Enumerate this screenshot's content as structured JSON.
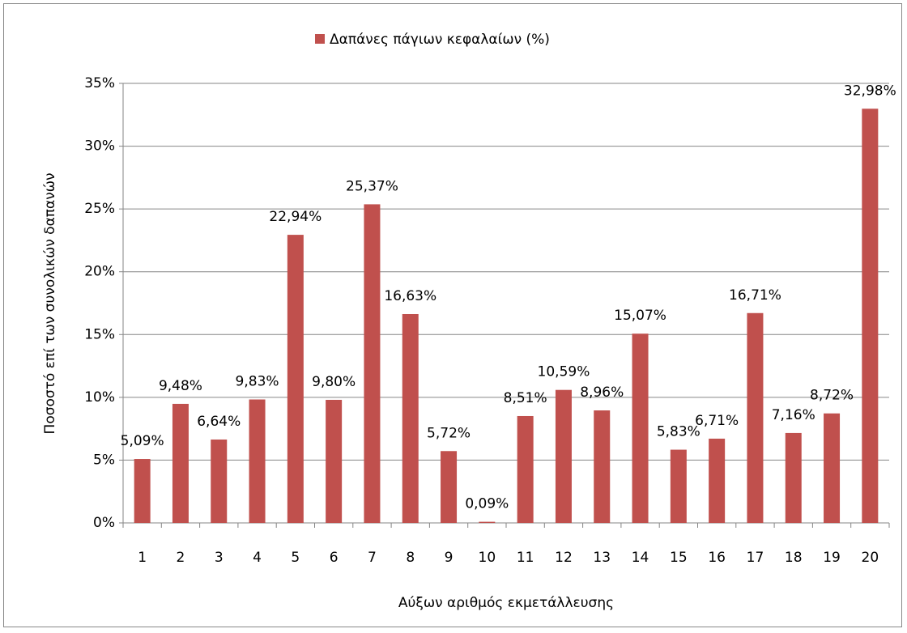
{
  "chart_data": {
    "type": "bar",
    "legend": "Δαπάνες πάγιων κεφαλαίων (%)",
    "y_label": "Ποσοστό επί των συνολικών δαπανών",
    "x_label": "Αύξων αριθμός εκμετάλλευσης",
    "categories": [
      "1",
      "2",
      "3",
      "4",
      "5",
      "6",
      "7",
      "8",
      "9",
      "10",
      "11",
      "12",
      "13",
      "14",
      "15",
      "16",
      "17",
      "18",
      "19",
      "20"
    ],
    "values": [
      5.09,
      9.48,
      6.64,
      9.83,
      22.94,
      9.8,
      25.37,
      16.63,
      5.72,
      0.09,
      8.51,
      10.59,
      8.96,
      15.07,
      5.83,
      6.71,
      16.71,
      7.16,
      8.72,
      32.98
    ],
    "value_labels": [
      "5,09%",
      "9,48%",
      "6,64%",
      "9,83%",
      "22,94%",
      "9,80%",
      "25,37%",
      "16,63%",
      "5,72%",
      "0,09%",
      "8,51%",
      "10,59%",
      "8,96%",
      "15,07%",
      "5,83%",
      "6,71%",
      "16,71%",
      "7,16%",
      "8,72%",
      "32,98%"
    ],
    "color": "#c0504d",
    "ylim": [
      0,
      35
    ],
    "yticks": [
      {
        "value": 0,
        "label": "0%"
      },
      {
        "value": 5,
        "label": "5%"
      },
      {
        "value": 10,
        "label": "10%"
      },
      {
        "value": 15,
        "label": "15%"
      },
      {
        "value": 20,
        "label": "20%"
      },
      {
        "value": 25,
        "label": "25%"
      },
      {
        "value": 30,
        "label": "30%"
      },
      {
        "value": 35,
        "label": "35%"
      }
    ],
    "grid": true
  }
}
